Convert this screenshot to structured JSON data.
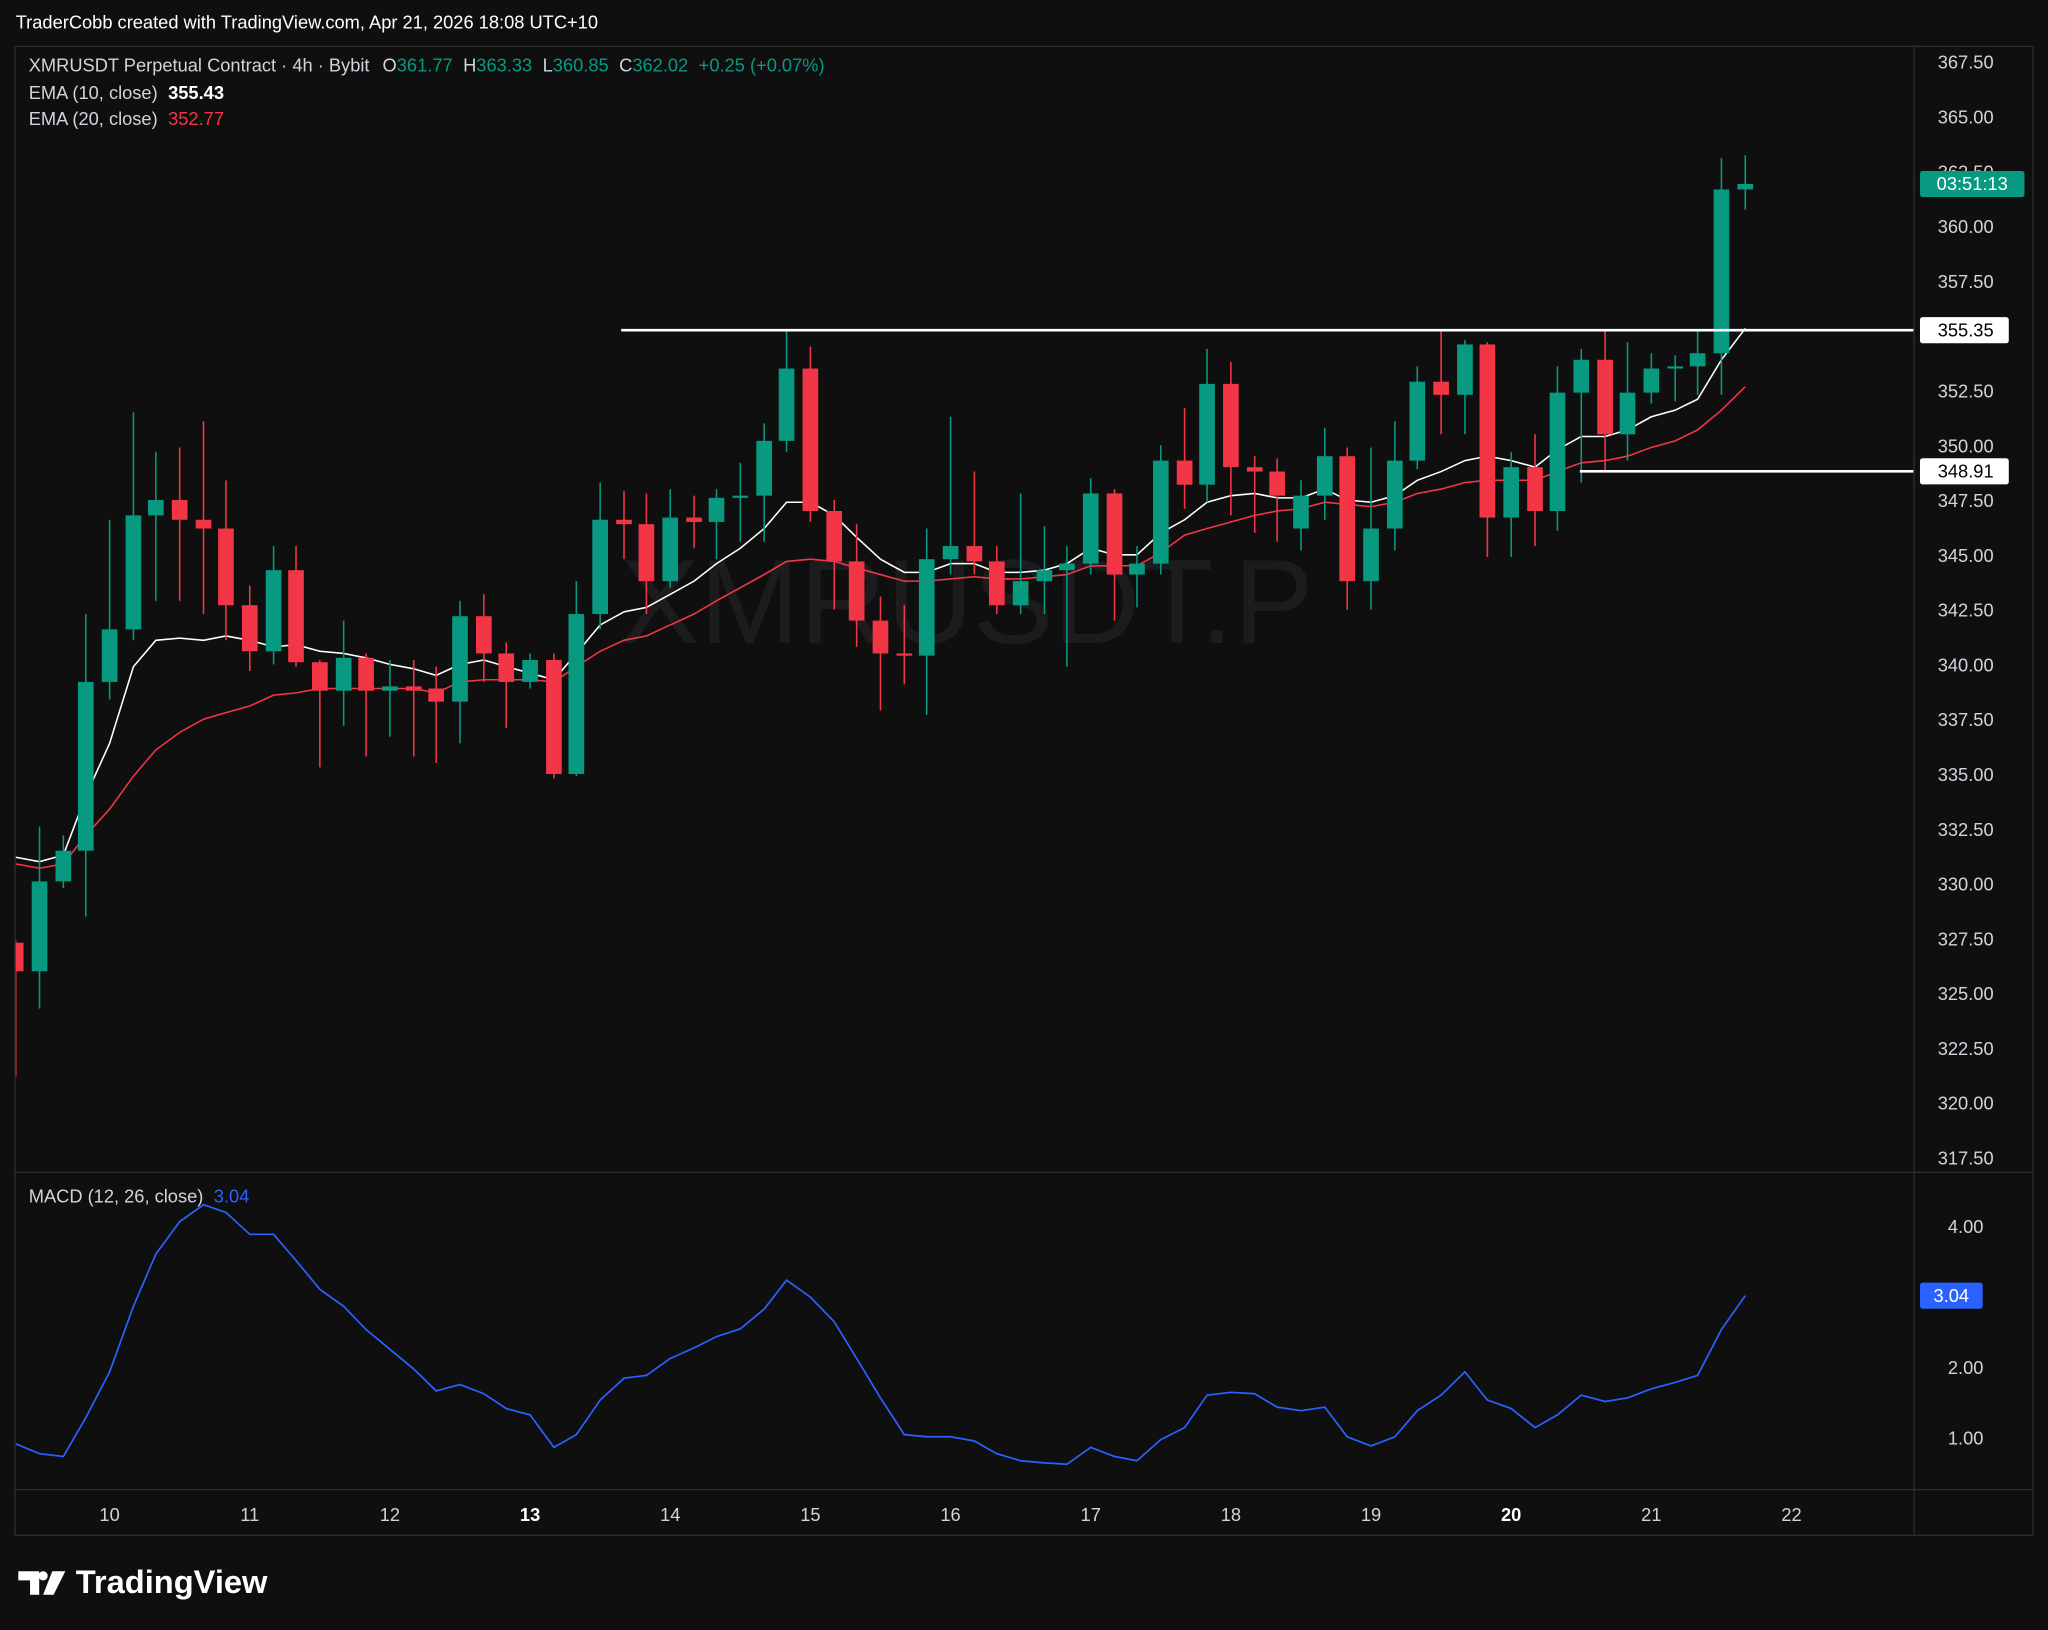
{
  "header": {
    "text": "TraderCobb created with TradingView.com, Apr 21, 2026 18:08 UTC+10"
  },
  "footer": {
    "logo_text": "TradingView"
  },
  "chart_data": [
    {
      "type": "candlestick",
      "title": "XMRUSDT Perpetual Contract · 4h · Bybit",
      "ohlc_labels": [
        "O",
        "H",
        "L",
        "C"
      ],
      "change": "+0.25 (+0.07%)",
      "watermark": "XMRUSDT.P",
      "countdown": "03:51:13",
      "up_color": "#089981",
      "down_color": "#f23645",
      "x": [
        9.33,
        9.5,
        9.67,
        9.83,
        10,
        10.17,
        10.33,
        10.5,
        10.67,
        10.83,
        11,
        11.17,
        11.33,
        11.5,
        11.67,
        11.83,
        12,
        12.17,
        12.33,
        12.5,
        12.67,
        12.83,
        13,
        13.17,
        13.33,
        13.5,
        13.67,
        13.83,
        14,
        14.17,
        14.33,
        14.5,
        14.67,
        14.83,
        15,
        15.17,
        15.33,
        15.5,
        15.67,
        15.83,
        16,
        16.17,
        16.33,
        16.5,
        16.67,
        16.83,
        17,
        17.17,
        17.33,
        17.5,
        17.67,
        17.83,
        18,
        18.17,
        18.33,
        18.5,
        18.67,
        18.83,
        19,
        19.17,
        19.33,
        19.5,
        19.67,
        19.83,
        20,
        20.17,
        20.33,
        20.5,
        20.67,
        20.83,
        21,
        21.17,
        21.33,
        21.5,
        21.67
      ],
      "open": [
        327.4,
        326.1,
        330.2,
        331.6,
        339.3,
        341.7,
        346.9,
        347.6,
        346.7,
        346.3,
        342.8,
        340.7,
        344.4,
        340.2,
        338.9,
        340.4,
        338.9,
        339.1,
        339.0,
        338.4,
        342.3,
        340.6,
        339.3,
        340.3,
        335.1,
        342.4,
        346.7,
        346.5,
        343.9,
        346.8,
        346.6,
        347.7,
        347.8,
        350.3,
        353.6,
        347.1,
        344.8,
        342.1,
        340.6,
        340.5,
        344.9,
        345.5,
        344.8,
        342.8,
        343.9,
        344.4,
        344.7,
        347.9,
        344.2,
        344.7,
        349.4,
        348.3,
        352.9,
        349.1,
        348.9,
        346.3,
        347.8,
        349.6,
        343.9,
        346.3,
        349.4,
        353.0,
        352.4,
        354.7,
        346.8,
        349.1,
        347.1,
        352.5,
        354.0,
        350.6,
        352.5,
        353.6,
        353.7,
        354.3,
        361.77
      ],
      "high": [
        327.5,
        332.7,
        332.3,
        342.4,
        346.7,
        351.6,
        349.8,
        350.0,
        351.2,
        348.5,
        343.7,
        345.5,
        345.5,
        340.3,
        342.1,
        340.6,
        340.3,
        340.3,
        340.0,
        343.0,
        343.3,
        341.1,
        340.6,
        340.6,
        343.9,
        348.4,
        348.0,
        347.9,
        348.1,
        347.8,
        348.1,
        349.3,
        351.1,
        355.4,
        354.6,
        347.6,
        346.5,
        343.2,
        342.8,
        346.3,
        351.4,
        348.9,
        345.5,
        347.9,
        346.4,
        345.5,
        348.6,
        348.1,
        345.5,
        350.1,
        351.8,
        354.5,
        353.9,
        349.6,
        349.5,
        348.5,
        350.9,
        350.0,
        350.0,
        351.2,
        353.7,
        355.4,
        354.9,
        354.8,
        349.8,
        350.6,
        353.7,
        354.5,
        355.3,
        354.8,
        354.3,
        354.2,
        355.4,
        363.2,
        363.33
      ],
      "low": [
        321.3,
        324.4,
        329.9,
        328.6,
        338.5,
        341.2,
        343.0,
        343.0,
        342.4,
        341.2,
        339.8,
        340.1,
        340.0,
        335.4,
        337.3,
        335.9,
        336.8,
        335.9,
        335.6,
        336.5,
        339.3,
        337.2,
        339.0,
        334.9,
        335.0,
        341.7,
        344.9,
        342.4,
        343.6,
        345.4,
        344.9,
        345.7,
        345.7,
        349.8,
        346.6,
        342.6,
        340.9,
        338.0,
        339.2,
        337.8,
        344.2,
        344.2,
        342.4,
        342.4,
        342.4,
        340.0,
        344.2,
        342.1,
        342.7,
        344.2,
        347.2,
        347.5,
        346.9,
        346.1,
        345.7,
        345.3,
        346.7,
        342.6,
        342.6,
        345.3,
        349.0,
        350.6,
        350.6,
        345.0,
        345.0,
        345.5,
        346.2,
        348.4,
        348.9,
        349.4,
        352.0,
        352.1,
        352.4,
        352.4,
        360.85
      ],
      "close": [
        326.1,
        330.2,
        331.6,
        339.3,
        341.7,
        346.9,
        347.6,
        346.7,
        346.3,
        342.8,
        340.7,
        344.4,
        340.2,
        338.9,
        340.4,
        338.9,
        339.1,
        338.9,
        338.4,
        342.3,
        340.6,
        339.3,
        340.3,
        335.1,
        342.4,
        346.7,
        346.5,
        343.9,
        346.8,
        346.6,
        347.7,
        347.8,
        350.3,
        353.6,
        347.1,
        344.8,
        342.1,
        340.6,
        340.5,
        344.9,
        345.5,
        344.8,
        342.8,
        343.9,
        344.4,
        344.7,
        347.9,
        344.2,
        344.7,
        349.4,
        348.3,
        352.9,
        349.1,
        348.9,
        347.8,
        347.8,
        349.6,
        343.9,
        346.3,
        349.4,
        353.0,
        352.4,
        354.7,
        346.8,
        349.1,
        347.1,
        352.5,
        354.0,
        350.6,
        352.5,
        353.6,
        353.7,
        354.3,
        361.77,
        362.02
      ],
      "overlays": [
        {
          "name": "EMA (10, close)",
          "color": "#ffffff",
          "values": [
            331.3,
            331.1,
            331.4,
            334.1,
            336.5,
            340.0,
            341.2,
            341.3,
            341.2,
            341.4,
            341.2,
            340.9,
            341.0,
            340.7,
            340.6,
            340.4,
            340.1,
            339.9,
            339.6,
            340.1,
            340.3,
            340.0,
            339.7,
            339.4,
            340.6,
            341.9,
            342.5,
            342.7,
            343.3,
            343.9,
            344.7,
            345.4,
            346.3,
            347.5,
            347.5,
            346.9,
            345.9,
            344.9,
            344.3,
            344.3,
            344.7,
            344.7,
            344.3,
            344.3,
            344.4,
            344.7,
            345.4,
            345.1,
            345.1,
            346.1,
            346.7,
            347.5,
            347.8,
            347.9,
            347.7,
            347.7,
            348.1,
            347.6,
            347.5,
            347.8,
            348.5,
            348.9,
            349.4,
            349.6,
            349.4,
            349.1,
            349.9,
            350.5,
            350.5,
            350.8,
            351.4,
            351.7,
            352.2,
            354.0,
            355.43
          ]
        },
        {
          "name": "EMA (20, close)",
          "color": "#f23645",
          "values": [
            331.0,
            330.8,
            331.0,
            332.3,
            333.5,
            335.0,
            336.2,
            337.0,
            337.6,
            337.9,
            338.2,
            338.7,
            338.8,
            339.0,
            339.0,
            339.0,
            339.0,
            339.0,
            338.8,
            339.3,
            339.4,
            339.4,
            339.4,
            339.3,
            340.0,
            340.7,
            341.2,
            341.4,
            341.9,
            342.4,
            343.0,
            343.6,
            344.2,
            344.8,
            344.9,
            344.8,
            344.5,
            344.2,
            343.9,
            343.9,
            344.0,
            344.1,
            344.0,
            344.0,
            344.1,
            344.2,
            344.6,
            344.6,
            344.6,
            345.2,
            346.0,
            346.3,
            346.6,
            346.9,
            347.1,
            347.2,
            347.5,
            347.4,
            347.3,
            347.5,
            347.9,
            348.1,
            348.4,
            348.5,
            348.5,
            348.5,
            348.9,
            349.3,
            349.4,
            349.6,
            350.0,
            350.3,
            350.8,
            351.7,
            352.77
          ]
        }
      ],
      "levels": [
        {
          "value": 355.35,
          "x_start": 13.65
        },
        {
          "value": 348.91,
          "x_start": 20.49
        }
      ],
      "xlim": [
        9.33,
        22.87
      ],
      "xticks": [
        10,
        11,
        12,
        13,
        14,
        15,
        16,
        17,
        18,
        19,
        20,
        21,
        22
      ],
      "bold_xticks": [
        13,
        20
      ],
      "ylim": [
        316.96,
        368.33
      ],
      "yticks": [
        {
          "value": 317.5,
          "label": "317.50"
        },
        {
          "value": 320,
          "label": "320.00"
        },
        {
          "value": 322.5,
          "label": "322.50"
        },
        {
          "value": 325,
          "label": "325.00"
        },
        {
          "value": 327.5,
          "label": "327.50"
        },
        {
          "value": 330,
          "label": "330.00"
        },
        {
          "value": 332.5,
          "label": "332.50"
        },
        {
          "value": 335,
          "label": "335.00"
        },
        {
          "value": 337.5,
          "label": "337.50"
        },
        {
          "value": 340,
          "label": "340.00"
        },
        {
          "value": 342.5,
          "label": "342.50"
        },
        {
          "value": 345,
          "label": "345.00"
        },
        {
          "value": 347.5,
          "label": "347.50"
        },
        {
          "value": 350,
          "label": "350.00"
        },
        {
          "value": 352.5,
          "label": "352.50"
        },
        {
          "value": 355,
          "label": "355.00"
        },
        {
          "value": 357.5,
          "label": "357.50"
        },
        {
          "value": 360,
          "label": "360.00"
        },
        {
          "value": 362.5,
          "label": "362.50"
        },
        {
          "value": 365,
          "label": "365.00"
        },
        {
          "value": 367.5,
          "label": "367.50"
        }
      ],
      "grid": false
    },
    {
      "type": "line",
      "title": "MACD (12, 26, close)",
      "color": "#2962ff",
      "values": [
        0.94,
        0.8,
        0.76,
        1.31,
        1.96,
        2.89,
        3.63,
        4.09,
        4.33,
        4.22,
        3.91,
        3.91,
        3.54,
        3.13,
        2.89,
        2.56,
        2.28,
        2.0,
        1.69,
        1.78,
        1.65,
        1.44,
        1.35,
        0.89,
        1.07,
        1.56,
        1.87,
        1.91,
        2.15,
        2.3,
        2.46,
        2.57,
        2.85,
        3.26,
        3.02,
        2.67,
        2.15,
        1.59,
        1.07,
        1.04,
        1.04,
        0.98,
        0.8,
        0.7,
        0.67,
        0.65,
        0.89,
        0.76,
        0.7,
        1.0,
        1.17,
        1.63,
        1.67,
        1.65,
        1.46,
        1.41,
        1.46,
        1.04,
        0.91,
        1.04,
        1.41,
        1.63,
        1.96,
        1.56,
        1.44,
        1.17,
        1.35,
        1.63,
        1.54,
        1.59,
        1.72,
        1.81,
        1.91,
        2.56,
        3.04
      ],
      "ylim": [
        0.3,
        4.8
      ],
      "yticks": [
        {
          "value": 1,
          "label": "1.00"
        },
        {
          "value": 2,
          "label": "2.00"
        },
        {
          "value": 4,
          "label": "4.00"
        }
      ],
      "grid": false
    }
  ]
}
